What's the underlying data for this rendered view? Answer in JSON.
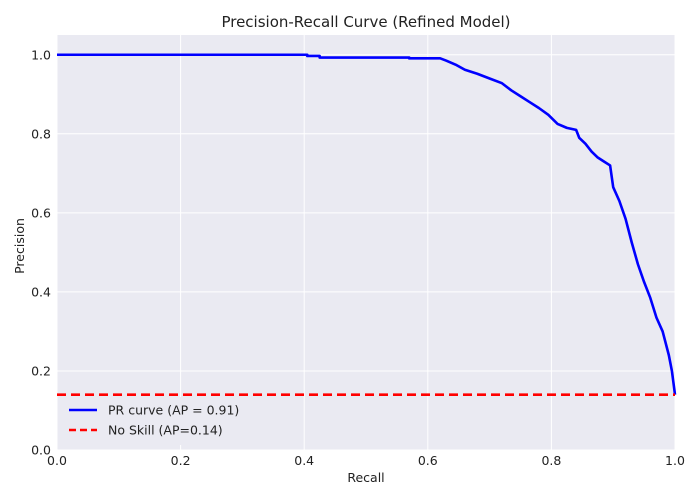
{
  "chart_data": {
    "type": "line",
    "title": "Precision-Recall Curve (Refined Model)",
    "xlabel": "Recall",
    "ylabel": "Precision",
    "xlim": [
      0.0,
      1.0
    ],
    "ylim": [
      0.0,
      1.05
    ],
    "xticks": [
      "0.0",
      "0.2",
      "0.4",
      "0.6",
      "0.8",
      "1.0"
    ],
    "yticks": [
      "0.0",
      "0.2",
      "0.4",
      "0.6",
      "0.8",
      "1.0"
    ],
    "grid": true,
    "legend_position": "bottom-left",
    "background_color": "#eaeaf2",
    "series": [
      {
        "name": "PR curve (AP = 0.91)",
        "color": "#0000ff",
        "style": "solid",
        "x": [
          0.0,
          0.405,
          0.405,
          0.425,
          0.425,
          0.57,
          0.57,
          0.62,
          0.63,
          0.645,
          0.66,
          0.68,
          0.7,
          0.72,
          0.735,
          0.75,
          0.765,
          0.78,
          0.795,
          0.81,
          0.825,
          0.84,
          0.845,
          0.855,
          0.865,
          0.875,
          0.885,
          0.895,
          0.9,
          0.91,
          0.92,
          0.93,
          0.94,
          0.95,
          0.96,
          0.97,
          0.98,
          0.99,
          0.995,
          1.0
        ],
        "y": [
          1.0,
          1.0,
          0.997,
          0.997,
          0.993,
          0.993,
          0.991,
          0.991,
          0.985,
          0.975,
          0.962,
          0.952,
          0.94,
          0.928,
          0.91,
          0.895,
          0.88,
          0.865,
          0.848,
          0.825,
          0.815,
          0.81,
          0.79,
          0.775,
          0.755,
          0.74,
          0.73,
          0.72,
          0.665,
          0.63,
          0.585,
          0.525,
          0.47,
          0.425,
          0.385,
          0.335,
          0.3,
          0.24,
          0.2,
          0.14
        ]
      },
      {
        "name": "No Skill (AP=0.14)",
        "color": "#ff0000",
        "style": "dashed",
        "x": [
          0.0,
          1.0
        ],
        "y": [
          0.14,
          0.14
        ]
      }
    ]
  }
}
